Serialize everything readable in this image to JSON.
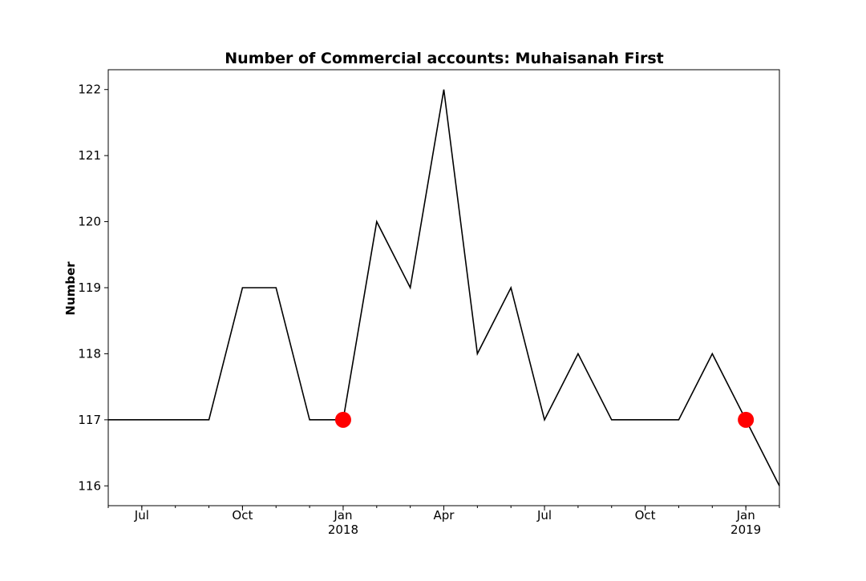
{
  "chart_data": {
    "type": "line",
    "title": "Number of Commercial accounts: Muhaisanah First",
    "xlabel": "",
    "ylabel": "Number",
    "x_axis_type": "date",
    "xlim": [
      "2017-06",
      "2019-02"
    ],
    "ylim": [
      115.7,
      122.3
    ],
    "grid": false,
    "legend": "none",
    "x_ticks": [
      {
        "date": "2017-07",
        "label": "Jul",
        "sublabel": ""
      },
      {
        "date": "2017-10",
        "label": "Oct",
        "sublabel": ""
      },
      {
        "date": "2018-01",
        "label": "Jan",
        "sublabel": "2018"
      },
      {
        "date": "2018-04",
        "label": "Apr",
        "sublabel": ""
      },
      {
        "date": "2018-07",
        "label": "Jul",
        "sublabel": ""
      },
      {
        "date": "2018-10",
        "label": "Oct",
        "sublabel": ""
      },
      {
        "date": "2019-01",
        "label": "Jan",
        "sublabel": "2019"
      }
    ],
    "y_ticks": [
      116,
      117,
      118,
      119,
      120,
      121,
      122
    ],
    "series": [
      {
        "color": "#000000",
        "points": [
          {
            "x": "2017-06",
            "y": 117
          },
          {
            "x": "2017-07",
            "y": 117
          },
          {
            "x": "2017-08",
            "y": 117
          },
          {
            "x": "2017-09",
            "y": 117
          },
          {
            "x": "2017-10",
            "y": 119
          },
          {
            "x": "2017-11",
            "y": 119
          },
          {
            "x": "2017-12",
            "y": 117
          },
          {
            "x": "2018-01",
            "y": 117
          },
          {
            "x": "2018-02",
            "y": 120
          },
          {
            "x": "2018-03",
            "y": 119
          },
          {
            "x": "2018-04",
            "y": 122
          },
          {
            "x": "2018-05",
            "y": 118
          },
          {
            "x": "2018-06",
            "y": 119
          },
          {
            "x": "2018-07",
            "y": 117
          },
          {
            "x": "2018-08",
            "y": 118
          },
          {
            "x": "2018-09",
            "y": 117
          },
          {
            "x": "2018-10",
            "y": 117
          },
          {
            "x": "2018-11",
            "y": 117
          },
          {
            "x": "2018-12",
            "y": 118
          },
          {
            "x": "2019-01",
            "y": 117
          },
          {
            "x": "2019-02",
            "y": 116
          }
        ]
      }
    ],
    "markers": {
      "color": "#ff0000",
      "points": [
        {
          "x": "2018-01",
          "y": 117
        },
        {
          "x": "2019-01",
          "y": 117
        }
      ]
    }
  }
}
